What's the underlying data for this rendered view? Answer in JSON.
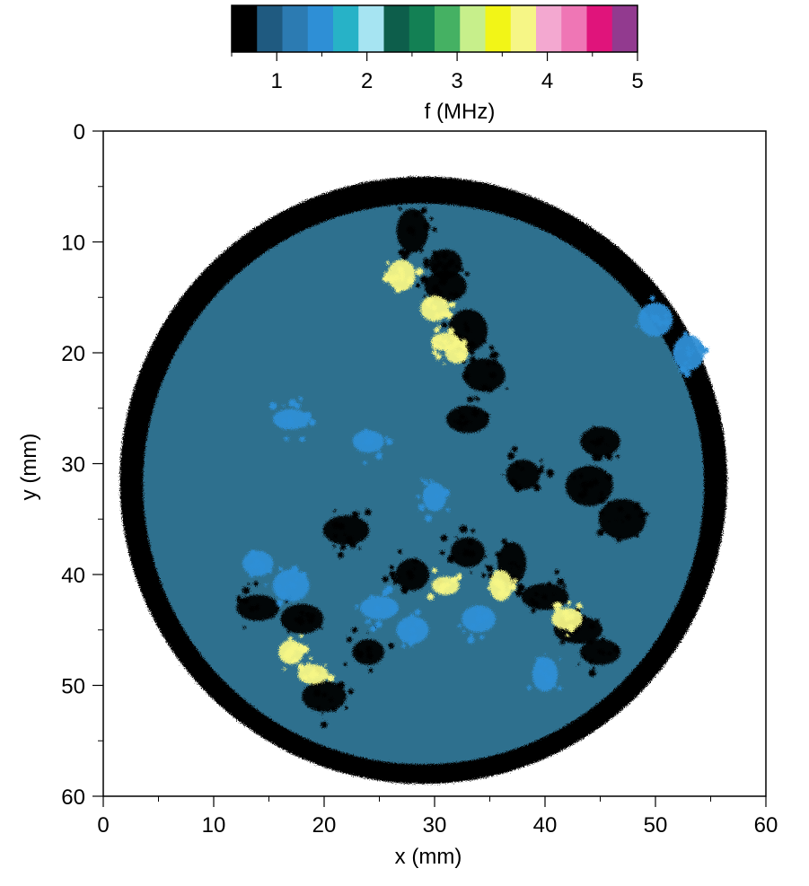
{
  "chart_data": {
    "type": "heatmap",
    "title": "",
    "xlabel": "x (mm)",
    "ylabel": "y (mm)",
    "xlim": [
      0,
      60
    ],
    "ylim": [
      0,
      60
    ],
    "y_axis_inverted": true,
    "x_ticks": [
      0,
      10,
      20,
      30,
      40,
      50,
      60
    ],
    "y_ticks": [
      0,
      10,
      20,
      30,
      40,
      50,
      60
    ],
    "grid": false,
    "colorbar": {
      "label": "f (MHz)",
      "range": [
        0.5,
        5
      ],
      "ticks": [
        1,
        2,
        3,
        4,
        5
      ],
      "placement": "top",
      "colors": [
        "#000000",
        "#1f5a80",
        "#2c7bb2",
        "#2e8fd6",
        "#27b2c7",
        "#a6e4f2",
        "#0d5e4b",
        "#138054",
        "#45b163",
        "#c7ef8b",
        "#f2f517",
        "#f6f686",
        "#f3a8d0",
        "#ef76b5",
        "#e0147b",
        "#923a8f"
      ]
    },
    "sample_disk": {
      "center_mm": [
        29,
        31.5
      ],
      "radius_mm": 27.5,
      "base_color": "#2e6f8e",
      "rim_color": "#000000"
    },
    "regions": [
      {
        "type": "rim",
        "desc": "outer black ring ~1.5-2.5 mm wide"
      },
      {
        "type": "dark_patch",
        "points": [
          [
            31,
            14
          ],
          [
            33,
            18
          ],
          [
            34.5,
            22
          ],
          [
            33,
            26
          ],
          [
            31,
            12
          ],
          [
            28,
            9
          ]
        ]
      },
      {
        "type": "dark_patch",
        "points": [
          [
            28,
            40
          ],
          [
            33,
            38
          ],
          [
            37,
            39
          ],
          [
            40,
            42
          ],
          [
            43,
            45
          ],
          [
            45,
            47
          ],
          [
            22,
            36
          ],
          [
            38,
            31
          ],
          [
            44,
            32
          ],
          [
            47,
            35
          ],
          [
            45,
            28
          ],
          [
            14,
            43
          ],
          [
            18,
            44
          ],
          [
            24,
            47
          ],
          [
            20,
            51
          ]
        ]
      },
      {
        "type": "yellow_patch",
        "points": [
          [
            30,
            16
          ],
          [
            31,
            19
          ],
          [
            32,
            20
          ],
          [
            27,
            13
          ],
          [
            31,
            41
          ],
          [
            36,
            41
          ],
          [
            42,
            44
          ],
          [
            19,
            49
          ],
          [
            17,
            47
          ]
        ]
      },
      {
        "type": "blue_patch",
        "points": [
          [
            14,
            39
          ],
          [
            17,
            41
          ],
          [
            25,
            43
          ],
          [
            28,
            45
          ],
          [
            34,
            44
          ],
          [
            40,
            49
          ],
          [
            17,
            26
          ],
          [
            24,
            28
          ],
          [
            30,
            33
          ],
          [
            50,
            17
          ],
          [
            53,
            20
          ]
        ]
      }
    ]
  }
}
